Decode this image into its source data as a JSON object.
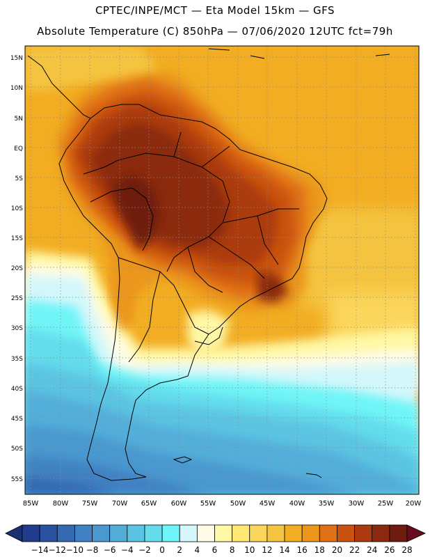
{
  "header": {
    "line1": "CPTEC/INPE/MCT —   Eta Model 15km — GFS",
    "line2": "Absolute Temperature (C) 850hPa — 07/06/2020 12UTC fct=79h"
  },
  "map": {
    "lat_labels": [
      "15N",
      "10N",
      "5N",
      "EQ",
      "5S",
      "10S",
      "15S",
      "20S",
      "25S",
      "30S",
      "35S",
      "40S",
      "45S",
      "50S",
      "55S"
    ],
    "lon_labels": [
      "85W",
      "80W",
      "75W",
      "70W",
      "65W",
      "60W",
      "55W",
      "50W",
      "45W",
      "40W",
      "35W",
      "30W",
      "25W",
      "20W"
    ]
  },
  "colorbar": {
    "labels": [
      "-14",
      "-12",
      "-10",
      "-8",
      "-6",
      "-4",
      "-2",
      "0",
      "2",
      "4",
      "6",
      "8",
      "10",
      "12",
      "14",
      "16",
      "18",
      "20",
      "22",
      "24",
      "26",
      "28"
    ],
    "colors": [
      "#1f3d8c",
      "#2a52a1",
      "#3569b2",
      "#3f81c2",
      "#4a98cf",
      "#52aed9",
      "#5bc4e2",
      "#64dcec",
      "#6ff5f7",
      "#d3f7fb",
      "#fffbe6",
      "#fff8a4",
      "#ffe873",
      "#fbd65c",
      "#f4c441",
      "#f2ad22",
      "#eb961a",
      "#e07016",
      "#c95211",
      "#ab3a10",
      "#8b2a10",
      "#6e1c0e"
    ],
    "low_color": "#1a3070",
    "high_color": "#6a0a20"
  }
}
